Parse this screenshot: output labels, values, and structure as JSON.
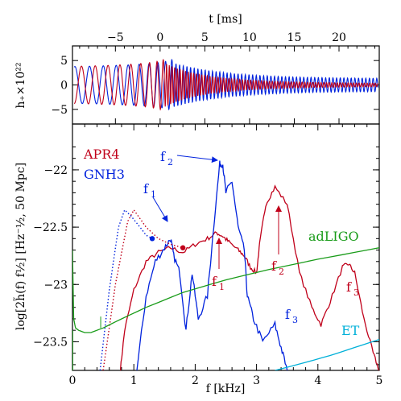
{
  "chart_data": [
    {
      "type": "line",
      "top_axis": {
        "label": "t [ms]",
        "ticks": [
          "−5",
          "0",
          "5",
          "10",
          "15",
          "20"
        ],
        "range": [
          -9.8,
          24.5
        ]
      },
      "ylabel": "h₊×10²²",
      "ylim": [
        -8,
        8
      ],
      "yticks": [
        "5",
        "0",
        "−5"
      ],
      "series": [
        {
          "color": "#c0001a",
          "peak_amplitude": 4.5,
          "merger_time_ms": 0.5,
          "postmerger_decay_ms": 5
        },
        {
          "color": "#0022dd",
          "peak_amplitude": 4.5,
          "merger_time_ms": 1.5,
          "postmerger_amplitude_end": 1.3
        }
      ]
    },
    {
      "type": "line",
      "xlabel": "f [kHz]",
      "ylabel": "log[2h̃(f) f½] [Hz⁻½, 50 Mpc]",
      "xlim": [
        0,
        5
      ],
      "ylim": [
        -23.75,
        -21.6
      ],
      "xticks": [
        "0",
        "1",
        "2",
        "3",
        "4",
        "5"
      ],
      "yticks": [
        "−22",
        "−22.5",
        "−23",
        "−23.5"
      ],
      "series": [
        {
          "name": "APR4",
          "color": "#c0001a",
          "x": [
            0.78,
            0.85,
            1.0,
            1.2,
            1.4,
            1.6,
            1.8,
            2.0,
            2.2,
            2.35,
            2.45,
            2.55,
            2.7,
            2.8,
            2.9,
            3.0,
            3.05,
            3.15,
            3.3,
            3.5,
            3.7,
            3.9,
            4.05,
            4.2,
            4.4,
            4.5,
            4.6,
            4.75,
            4.9,
            5.0
          ],
          "y": [
            -23.75,
            -23.4,
            -23.05,
            -22.8,
            -22.72,
            -22.68,
            -22.72,
            -22.65,
            -22.6,
            -22.55,
            -22.58,
            -22.63,
            -22.7,
            -22.75,
            -22.85,
            -22.9,
            -22.65,
            -22.3,
            -22.15,
            -22.3,
            -22.9,
            -23.2,
            -23.35,
            -23.15,
            -22.85,
            -22.82,
            -22.9,
            -23.3,
            -23.6,
            -23.75
          ]
        },
        {
          "name": "GNH3",
          "color": "#0022dd",
          "x": [
            1.05,
            1.2,
            1.35,
            1.5,
            1.6,
            1.65,
            1.75,
            1.85,
            1.95,
            2.05,
            2.2,
            2.3,
            2.4,
            2.45,
            2.5,
            2.6,
            2.7,
            2.8,
            2.85,
            2.95,
            3.1,
            3.3,
            3.4,
            3.5
          ],
          "y": [
            -23.75,
            -23.1,
            -22.8,
            -22.68,
            -22.6,
            -22.75,
            -22.9,
            -23.4,
            -22.9,
            -23.3,
            -23.1,
            -22.5,
            -21.95,
            -21.95,
            -22.2,
            -22.1,
            -22.5,
            -22.7,
            -23.1,
            -23.3,
            -23.5,
            -23.35,
            -23.55,
            -23.75
          ]
        },
        {
          "name": "APR4 inspiral (dotted)",
          "color": "#c0001a",
          "x": [
            0.5,
            0.7,
            0.9,
            1.0,
            1.2,
            1.4,
            1.6,
            1.8
          ],
          "y": [
            -23.75,
            -23.0,
            -22.45,
            -22.35,
            -22.5,
            -22.6,
            -22.65,
            -22.68
          ]
        },
        {
          "name": "GNH3 inspiral (dotted)",
          "color": "#0022dd",
          "x": [
            0.45,
            0.6,
            0.75,
            0.85,
            0.95,
            1.1,
            1.2,
            1.3
          ],
          "y": [
            -23.75,
            -23.05,
            -22.5,
            -22.35,
            -22.4,
            -22.5,
            -22.57,
            -22.6
          ]
        },
        {
          "name": "adLIGO",
          "color": "#1a9c1a",
          "x": [
            0.0,
            0.02,
            0.05,
            0.1,
            0.2,
            0.3,
            0.5,
            0.8,
            1.2,
            1.8,
            2.5,
            3.2,
            4.0,
            4.6,
            5.0
          ],
          "y": [
            -22.7,
            -23.3,
            -23.38,
            -23.4,
            -23.42,
            -23.42,
            -23.38,
            -23.3,
            -23.2,
            -23.07,
            -22.96,
            -22.87,
            -22.78,
            -22.72,
            -22.68
          ]
        },
        {
          "name": "ET",
          "color": "#00b0d8",
          "x": [
            3.3,
            3.8,
            4.2,
            4.6,
            5.0
          ],
          "y": [
            -23.75,
            -23.68,
            -23.62,
            -23.55,
            -23.48
          ]
        }
      ],
      "markers": [
        {
          "series": "GNH3",
          "x": 1.3,
          "y": -22.6,
          "color": "#0022dd"
        },
        {
          "series": "APR4",
          "x": 1.8,
          "y": -22.68,
          "color": "#c0001a"
        }
      ],
      "annotations": {
        "legend_apr4": "APR4",
        "legend_gnh3": "GNH3",
        "adligo": "adLIGO",
        "et": "ET",
        "gnh3_f1": "f",
        "gnh3_f1_sub": "1",
        "gnh3_f2": "f",
        "gnh3_f2_sub": "2",
        "gnh3_f3": "f",
        "gnh3_f3_sub": "3",
        "apr4_f1": "f",
        "apr4_f1_sub": "1",
        "apr4_f2": "f",
        "apr4_f2_sub": "2",
        "apr4_f3": "f",
        "apr4_f3_sub": "3"
      }
    }
  ]
}
